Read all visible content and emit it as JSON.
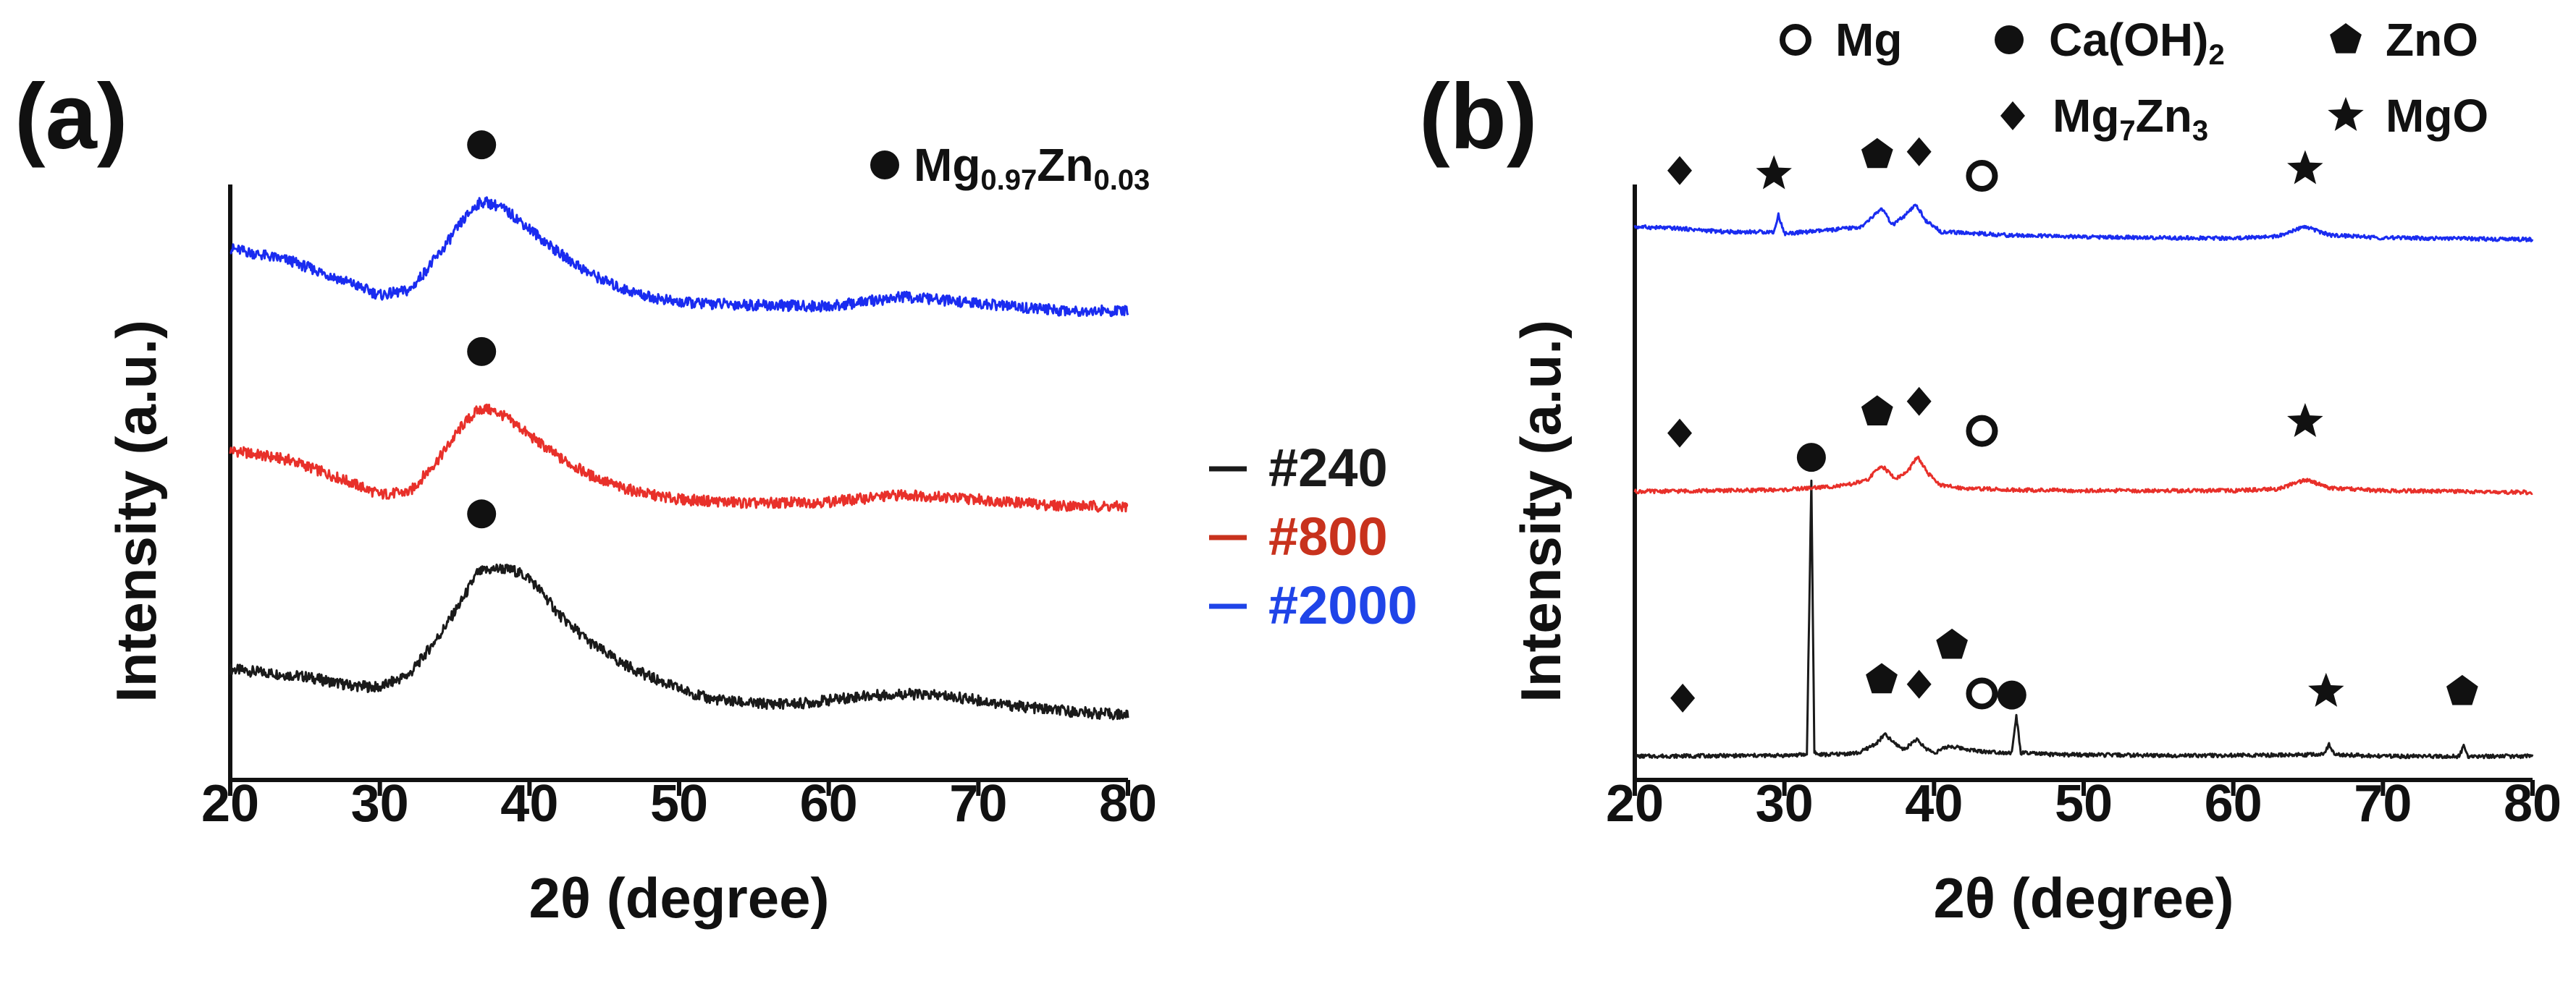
{
  "colors": {
    "#240": "#1a1a1a",
    "#800": "#e8302a",
    "#2000": "#1a2cf0"
  },
  "chart_data": [
    {
      "panel": "(a)",
      "type": "line",
      "xlabel": "2θ (degree)",
      "ylabel": "Intensity (a.u.)",
      "xlim": [
        20,
        80
      ],
      "xticks": [
        20,
        30,
        40,
        50,
        60,
        70,
        80
      ],
      "legend_position": "right",
      "legend_title": {
        "marker": "filled-circle",
        "base1": "Mg",
        "sub1": "0.97",
        "base2": "Zn",
        "sub2": "0.03"
      },
      "series": [
        {
          "name": "#240",
          "color": "#1a1a1a",
          "offset": 0,
          "x": [
            20,
            25,
            28,
            30,
            32,
            34,
            35.5,
            36.5,
            37,
            38,
            39,
            40,
            41,
            42,
            44,
            46,
            48,
            50,
            52,
            55,
            58,
            60,
            62,
            65,
            68,
            70,
            72,
            75,
            78,
            80
          ],
          "y": [
            1.05,
            0.9,
            0.72,
            0.68,
            0.95,
            1.75,
            2.45,
            3.0,
            3.05,
            3.1,
            3.05,
            2.9,
            2.55,
            2.15,
            1.6,
            1.2,
            0.9,
            0.65,
            0.45,
            0.35,
            0.35,
            0.42,
            0.5,
            0.55,
            0.5,
            0.42,
            0.32,
            0.22,
            0.15,
            0.12
          ],
          "peak_markers": [
            {
              "x": 36.8,
              "marker": "filled-circle"
            }
          ]
        },
        {
          "name": "#800",
          "color": "#e8302a",
          "offset": 4.3,
          "x": [
            20,
            24,
            28,
            30,
            32,
            34,
            35.5,
            36.5,
            37,
            38,
            39,
            40,
            42,
            44,
            46,
            48,
            50,
            55,
            60,
            65,
            70,
            75,
            80
          ],
          "y": [
            1.2,
            1.0,
            0.55,
            0.3,
            0.35,
            1.05,
            1.7,
            2.0,
            2.05,
            1.95,
            1.75,
            1.5,
            1.05,
            0.7,
            0.45,
            0.3,
            0.2,
            0.12,
            0.15,
            0.3,
            0.2,
            0.08,
            0.05
          ],
          "peak_markers": [
            {
              "x": 36.8,
              "marker": "filled-circle"
            }
          ]
        },
        {
          "name": "#2000",
          "color": "#1a2cf0",
          "offset": 8.3,
          "x": [
            20,
            24,
            28,
            30,
            32,
            34,
            35.5,
            36.5,
            37,
            38,
            39,
            40,
            42,
            44,
            46,
            48,
            50,
            55,
            60,
            65,
            70,
            75,
            80
          ],
          "y": [
            1.3,
            1.05,
            0.6,
            0.35,
            0.45,
            1.2,
            1.85,
            2.2,
            2.25,
            2.15,
            1.95,
            1.7,
            1.2,
            0.8,
            0.5,
            0.32,
            0.2,
            0.15,
            0.12,
            0.32,
            0.18,
            0.05,
            0.02
          ],
          "peak_markers": [
            {
              "x": 36.8,
              "marker": "filled-circle"
            }
          ]
        }
      ]
    },
    {
      "panel": "(b)",
      "type": "line",
      "xlabel": "2θ (degree)",
      "ylabel": "Intensity (a.u.)",
      "xlim": [
        20,
        80
      ],
      "xticks": [
        20,
        30,
        40,
        50,
        60,
        70,
        80
      ],
      "legend_position": "top",
      "phase_legend": [
        {
          "marker": "open-circle",
          "label": "Mg"
        },
        {
          "marker": "filled-circle",
          "base": "Ca(OH)",
          "sub": "2"
        },
        {
          "marker": "pentagon",
          "label": "ZnO"
        },
        {
          "marker": "diamond",
          "base1": "Mg",
          "sub1": "7",
          "base2": "Zn",
          "sub2": "3"
        },
        {
          "marker": "star",
          "label": "MgO"
        }
      ],
      "series": [
        {
          "name": "#240",
          "color": "#1a1a1a",
          "offset": 0,
          "x": [
            20,
            30,
            31.5,
            31.8,
            32.0,
            32.2,
            33,
            35,
            36.2,
            36.7,
            37.3,
            38,
            38.8,
            39.4,
            40,
            41,
            43,
            45.2,
            45.5,
            45.8,
            48,
            55,
            60,
            66,
            66.4,
            66.8,
            70,
            75.1,
            75.4,
            75.7,
            80
          ],
          "y": [
            0.2,
            0.25,
            0.3,
            16.5,
            0.5,
            0.3,
            0.3,
            0.4,
            1.0,
            1.5,
            1.0,
            0.6,
            1.2,
            0.7,
            0.4,
            0.8,
            0.5,
            0.4,
            2.6,
            0.4,
            0.3,
            0.25,
            0.25,
            0.3,
            0.9,
            0.3,
            0.2,
            0.2,
            0.8,
            0.2,
            0.2
          ],
          "peak_markers": [
            {
              "x": 23.2,
              "marker": "diamond"
            },
            {
              "x": 31.8,
              "marker": "filled-circle"
            },
            {
              "x": 36.5,
              "marker": "pentagon"
            },
            {
              "x": 39.0,
              "marker": "diamond"
            },
            {
              "x": 41.2,
              "marker": "pentagon"
            },
            {
              "x": 43.2,
              "marker": "open-circle"
            },
            {
              "x": 45.2,
              "marker": "filled-circle"
            },
            {
              "x": 66.2,
              "marker": "star"
            },
            {
              "x": 75.3,
              "marker": "pentagon"
            }
          ]
        },
        {
          "name": "#800",
          "color": "#e8302a",
          "offset": 15.6,
          "x": [
            20,
            25,
            30,
            34,
            35.5,
            36.5,
            37.4,
            38.2,
            38.9,
            39.6,
            40.5,
            42,
            45,
            50,
            55,
            60,
            63,
            64.8,
            66.5,
            70,
            75,
            80
          ],
          "y": [
            0.25,
            0.3,
            0.35,
            0.6,
            0.9,
            1.8,
            1.0,
            1.4,
            2.3,
            1.3,
            0.6,
            0.45,
            0.35,
            0.3,
            0.3,
            0.3,
            0.4,
            0.95,
            0.45,
            0.3,
            0.25,
            0.2
          ],
          "peak_markers": [
            {
              "x": 23.0,
              "marker": "diamond"
            },
            {
              "x": 36.2,
              "marker": "pentagon"
            },
            {
              "x": 39.0,
              "marker": "diamond"
            },
            {
              "x": 43.2,
              "marker": "open-circle"
            },
            {
              "x": 64.8,
              "marker": "star"
            }
          ]
        },
        {
          "name": "#2000",
          "color": "#1a2cf0",
          "offset": 30.6,
          "x": [
            20,
            23,
            26,
            29.3,
            29.6,
            30,
            33,
            35.2,
            36.5,
            37.2,
            38,
            38.8,
            39.5,
            40.5,
            43,
            45,
            50,
            55,
            60,
            63,
            64.8,
            66.5,
            70,
            75,
            80
          ],
          "y": [
            0.9,
            0.8,
            0.6,
            0.6,
            1.6,
            0.5,
            0.7,
            0.9,
            2.0,
            1.0,
            1.5,
            2.2,
            1.2,
            0.6,
            0.5,
            0.4,
            0.3,
            0.25,
            0.22,
            0.35,
            0.9,
            0.4,
            0.25,
            0.2,
            0.15
          ],
          "peak_markers": [
            {
              "x": 23.0,
              "marker": "diamond"
            },
            {
              "x": 29.3,
              "marker": "star"
            },
            {
              "x": 36.2,
              "marker": "pentagon"
            },
            {
              "x": 39.0,
              "marker": "diamond"
            },
            {
              "x": 43.2,
              "marker": "open-circle"
            },
            {
              "x": 64.8,
              "marker": "star"
            }
          ]
        }
      ]
    }
  ],
  "legend": {
    "items": [
      {
        "label": "#240",
        "color": "#1a1a1a"
      },
      {
        "label": "#800",
        "color": "#c8321d"
      },
      {
        "label": "#2000",
        "color": "#1f44e8"
      }
    ]
  }
}
